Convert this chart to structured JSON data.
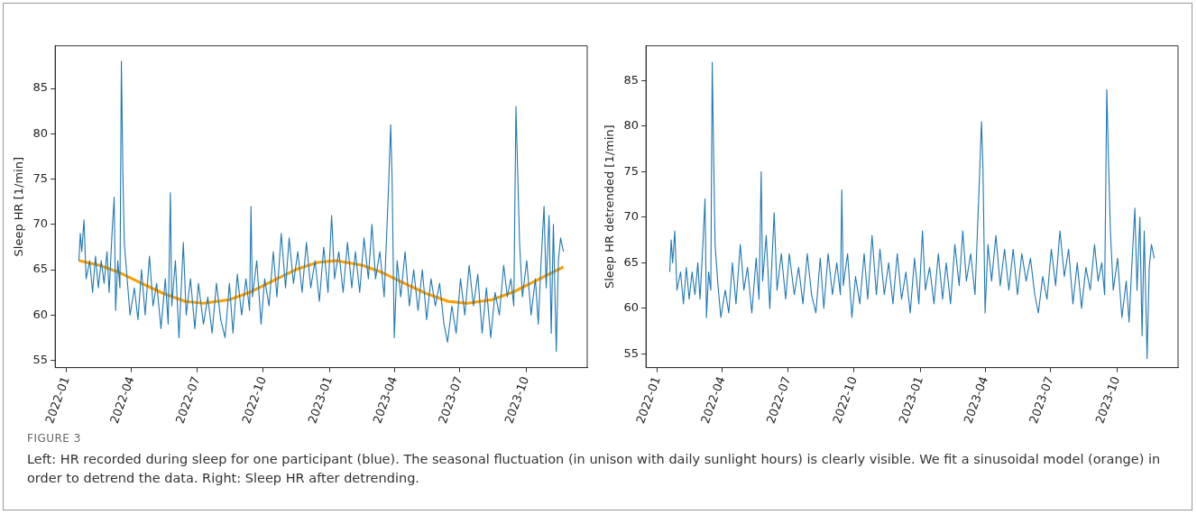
{
  "chart_data": [
    {
      "type": "line",
      "ylabel": "Sleep HR [1/min]",
      "xlim": [
        "2021-12-16",
        "2023-12-25"
      ],
      "xticks": [
        "2022-01",
        "2022-04",
        "2022-07",
        "2022-10",
        "2023-01",
        "2023-04",
        "2023-07",
        "2023-10"
      ],
      "ylim": [
        54.2,
        89.7
      ],
      "yticks": [
        55,
        60,
        65,
        70,
        75,
        80,
        85
      ],
      "marker": "none",
      "annotations": [
        "FIGURE 3",
        "Left: HR recorded during sleep for one participant (blue). The seasonal fluctuation (in unison with daily sunlight hours) is clearly visible. We fit a sinusoidal model (orange) in order to detrend the data. Right: Sleep HR after detrending."
      ],
      "x": [
        "2022-01-18",
        "2022-01-20",
        "2022-01-22",
        "2022-01-25",
        "2022-01-28",
        "2022-02-02",
        "2022-02-06",
        "2022-02-10",
        "2022-02-14",
        "2022-02-18",
        "2022-02-22",
        "2022-02-26",
        "2022-03-01",
        "2022-03-05",
        "2022-03-08",
        "2022-03-10",
        "2022-03-13",
        "2022-03-16",
        "2022-03-18",
        "2022-03-20",
        "2022-03-22",
        "2022-03-26",
        "2022-03-30",
        "2022-04-05",
        "2022-04-10",
        "2022-04-15",
        "2022-04-20",
        "2022-04-26",
        "2022-05-01",
        "2022-05-06",
        "2022-05-12",
        "2022-05-18",
        "2022-05-22",
        "2022-05-25",
        "2022-05-27",
        "2022-06-01",
        "2022-06-06",
        "2022-06-12",
        "2022-06-16",
        "2022-06-22",
        "2022-06-28",
        "2022-07-03",
        "2022-07-10",
        "2022-07-16",
        "2022-07-22",
        "2022-07-28",
        "2022-08-03",
        "2022-08-09",
        "2022-08-15",
        "2022-08-20",
        "2022-08-26",
        "2022-09-01",
        "2022-09-07",
        "2022-09-12",
        "2022-09-14",
        "2022-09-16",
        "2022-09-22",
        "2022-09-28",
        "2022-10-03",
        "2022-10-09",
        "2022-10-15",
        "2022-10-20",
        "2022-10-26",
        "2022-11-01",
        "2022-11-06",
        "2022-11-12",
        "2022-11-18",
        "2022-11-24",
        "2022-11-30",
        "2022-12-06",
        "2022-12-12",
        "2022-12-18",
        "2022-12-24",
        "2022-12-30",
        "2023-01-04",
        "2023-01-08",
        "2023-01-14",
        "2023-01-20",
        "2023-01-26",
        "2023-02-01",
        "2023-02-06",
        "2023-02-12",
        "2023-02-18",
        "2023-02-24",
        "2023-03-01",
        "2023-03-06",
        "2023-03-12",
        "2023-03-18",
        "2023-03-24",
        "2023-03-27",
        "2023-03-29",
        "2023-04-01",
        "2023-04-05",
        "2023-04-10",
        "2023-04-16",
        "2023-04-22",
        "2023-04-28",
        "2023-05-04",
        "2023-05-10",
        "2023-05-16",
        "2023-05-22",
        "2023-05-28",
        "2023-06-03",
        "2023-06-09",
        "2023-06-14",
        "2023-06-20",
        "2023-06-26",
        "2023-07-02",
        "2023-07-08",
        "2023-07-14",
        "2023-07-20",
        "2023-07-26",
        "2023-08-01",
        "2023-08-07",
        "2023-08-13",
        "2023-08-19",
        "2023-08-25",
        "2023-08-31",
        "2023-09-05",
        "2023-09-10",
        "2023-09-14",
        "2023-09-17",
        "2023-09-19",
        "2023-09-22",
        "2023-09-26",
        "2023-10-02",
        "2023-10-08",
        "2023-10-14",
        "2023-10-18",
        "2023-10-22",
        "2023-10-26",
        "2023-10-29",
        "2023-11-02",
        "2023-11-05",
        "2023-11-08",
        "2023-11-12",
        "2023-11-15",
        "2023-11-18",
        "2023-11-22"
      ],
      "series": [
        {
          "color": "#1f77b4",
          "values": [
            66,
            69,
            67,
            70.5,
            64,
            66,
            62.5,
            66.5,
            63,
            66,
            63.5,
            67,
            62.5,
            69,
            73,
            60.5,
            66,
            63,
            88,
            76,
            68,
            64,
            60,
            63,
            59.5,
            65,
            60,
            66.5,
            61,
            63.5,
            58.5,
            64,
            59,
            73.5,
            61,
            66,
            57.5,
            68,
            60,
            64,
            58.5,
            63.5,
            59,
            62,
            58,
            63.5,
            59.5,
            57.5,
            63.5,
            58,
            64.5,
            60,
            64,
            60.5,
            72,
            62,
            66,
            59,
            64,
            61,
            67,
            62,
            69,
            63,
            68.5,
            63.5,
            67,
            62.5,
            68,
            63,
            66,
            61.5,
            67.5,
            62.5,
            71,
            64,
            67,
            62.5,
            68,
            63,
            67,
            62.5,
            68.5,
            64,
            70,
            64,
            67,
            62,
            74,
            81,
            75,
            57.5,
            66,
            62,
            67,
            61,
            65,
            60.5,
            65,
            59.5,
            64,
            61,
            63.5,
            59,
            57,
            61,
            58,
            64,
            60,
            65.5,
            61,
            64.5,
            58,
            63,
            57.5,
            62.5,
            60,
            65.5,
            62,
            64,
            61,
            83,
            77,
            68,
            62,
            66,
            60,
            64,
            59,
            66,
            72,
            63,
            71,
            58,
            70,
            56,
            66,
            68.5,
            67
          ]
        },
        {
          "color": "#ff9f00",
          "x": [
            "2022-01-18",
            "2022-02-15",
            "2022-03-15",
            "2022-04-15",
            "2022-05-15",
            "2022-06-15",
            "2022-07-10",
            "2022-08-15",
            "2022-09-15",
            "2022-10-15",
            "2022-11-15",
            "2022-12-15",
            "2023-01-10",
            "2023-02-15",
            "2023-03-15",
            "2023-04-15",
            "2023-05-15",
            "2023-06-15",
            "2023-07-12",
            "2023-08-15",
            "2023-09-15",
            "2023-10-15",
            "2023-11-22"
          ],
          "values": [
            66,
            65.5,
            64.7,
            63.5,
            62.4,
            61.5,
            61.3,
            61.7,
            62.6,
            63.8,
            65,
            65.8,
            66,
            65.5,
            64.7,
            63.5,
            62.4,
            61.5,
            61.3,
            61.7,
            62.6,
            63.8,
            65.3
          ]
        }
      ]
    },
    {
      "type": "line",
      "ylabel": "Sleep HR detrended [1/min]",
      "xlim": [
        "2021-12-16",
        "2023-12-25"
      ],
      "xticks": [
        "2022-01",
        "2022-04",
        "2022-07",
        "2022-10",
        "2023-01",
        "2023-04",
        "2023-07",
        "2023-10"
      ],
      "ylim": [
        53.5,
        88.8
      ],
      "yticks": [
        55,
        60,
        65,
        70,
        75,
        80,
        85
      ],
      "marker": "none",
      "x": [
        "2022-01-18",
        "2022-01-20",
        "2022-01-22",
        "2022-01-25",
        "2022-01-28",
        "2022-02-02",
        "2022-02-06",
        "2022-02-10",
        "2022-02-14",
        "2022-02-18",
        "2022-02-22",
        "2022-02-26",
        "2022-03-01",
        "2022-03-05",
        "2022-03-08",
        "2022-03-10",
        "2022-03-13",
        "2022-03-16",
        "2022-03-18",
        "2022-03-20",
        "2022-03-22",
        "2022-03-26",
        "2022-03-30",
        "2022-04-05",
        "2022-04-10",
        "2022-04-15",
        "2022-04-20",
        "2022-04-26",
        "2022-05-01",
        "2022-05-06",
        "2022-05-12",
        "2022-05-18",
        "2022-05-22",
        "2022-05-25",
        "2022-05-27",
        "2022-06-01",
        "2022-06-06",
        "2022-06-12",
        "2022-06-16",
        "2022-06-22",
        "2022-06-28",
        "2022-07-03",
        "2022-07-10",
        "2022-07-16",
        "2022-07-22",
        "2022-07-28",
        "2022-08-03",
        "2022-08-09",
        "2022-08-15",
        "2022-08-20",
        "2022-08-26",
        "2022-09-01",
        "2022-09-07",
        "2022-09-12",
        "2022-09-14",
        "2022-09-16",
        "2022-09-22",
        "2022-09-28",
        "2022-10-03",
        "2022-10-09",
        "2022-10-15",
        "2022-10-20",
        "2022-10-26",
        "2022-11-01",
        "2022-11-06",
        "2022-11-12",
        "2022-11-18",
        "2022-11-24",
        "2022-11-30",
        "2022-12-06",
        "2022-12-12",
        "2022-12-18",
        "2022-12-24",
        "2022-12-30",
        "2023-01-04",
        "2023-01-08",
        "2023-01-14",
        "2023-01-20",
        "2023-01-26",
        "2023-02-01",
        "2023-02-06",
        "2023-02-12",
        "2023-02-18",
        "2023-02-24",
        "2023-03-01",
        "2023-03-06",
        "2023-03-12",
        "2023-03-18",
        "2023-03-24",
        "2023-03-27",
        "2023-03-29",
        "2023-04-01",
        "2023-04-05",
        "2023-04-10",
        "2023-04-16",
        "2023-04-22",
        "2023-04-28",
        "2023-05-04",
        "2023-05-10",
        "2023-05-16",
        "2023-05-22",
        "2023-05-28",
        "2023-06-03",
        "2023-06-09",
        "2023-06-14",
        "2023-06-20",
        "2023-06-26",
        "2023-07-02",
        "2023-07-08",
        "2023-07-14",
        "2023-07-20",
        "2023-07-26",
        "2023-08-01",
        "2023-08-07",
        "2023-08-13",
        "2023-08-19",
        "2023-08-25",
        "2023-08-31",
        "2023-09-05",
        "2023-09-10",
        "2023-09-14",
        "2023-09-17",
        "2023-09-19",
        "2023-09-22",
        "2023-09-26",
        "2023-10-02",
        "2023-10-08",
        "2023-10-14",
        "2023-10-18",
        "2023-10-22",
        "2023-10-26",
        "2023-10-29",
        "2023-11-02",
        "2023-11-05",
        "2023-11-08",
        "2023-11-12",
        "2023-11-15",
        "2023-11-18",
        "2023-11-22"
      ],
      "series": [
        {
          "color": "#1f77b4",
          "values": [
            64,
            67.5,
            65,
            68.5,
            62,
            64,
            60.5,
            64.5,
            61,
            64,
            61.5,
            65,
            61,
            67,
            72,
            59,
            64,
            62,
            87,
            76.5,
            67,
            62.5,
            59,
            62,
            59.5,
            65,
            60.5,
            67,
            62,
            64.5,
            59.5,
            65.5,
            61,
            75,
            63,
            68,
            60,
            70.5,
            62,
            66,
            61,
            66,
            61.5,
            64.5,
            60.5,
            66,
            61.5,
            59.5,
            65.5,
            60,
            66,
            61.5,
            65,
            61.5,
            73,
            62.5,
            66,
            59,
            63.5,
            60.5,
            66,
            61,
            68,
            61.5,
            66.5,
            61.5,
            65,
            60.5,
            66,
            61,
            64,
            59.5,
            65.5,
            60.5,
            68.5,
            62,
            64.5,
            60.5,
            66,
            61,
            65,
            60.5,
            67,
            62.5,
            68.5,
            63,
            66,
            61.5,
            74,
            80.5,
            75.5,
            59.5,
            67,
            63,
            68,
            62.5,
            66.5,
            62,
            66.5,
            61.5,
            66,
            63,
            65.5,
            61.5,
            59.5,
            63.5,
            61,
            66.5,
            62.5,
            68.5,
            63.5,
            66.5,
            60.5,
            65,
            60,
            64.5,
            62,
            67,
            63,
            65,
            61.5,
            84,
            77.5,
            68.5,
            62,
            65.5,
            59,
            63,
            58.5,
            65,
            71,
            62,
            70,
            57,
            68.5,
            54.5,
            64.5,
            67,
            65.5
          ]
        }
      ]
    }
  ]
}
